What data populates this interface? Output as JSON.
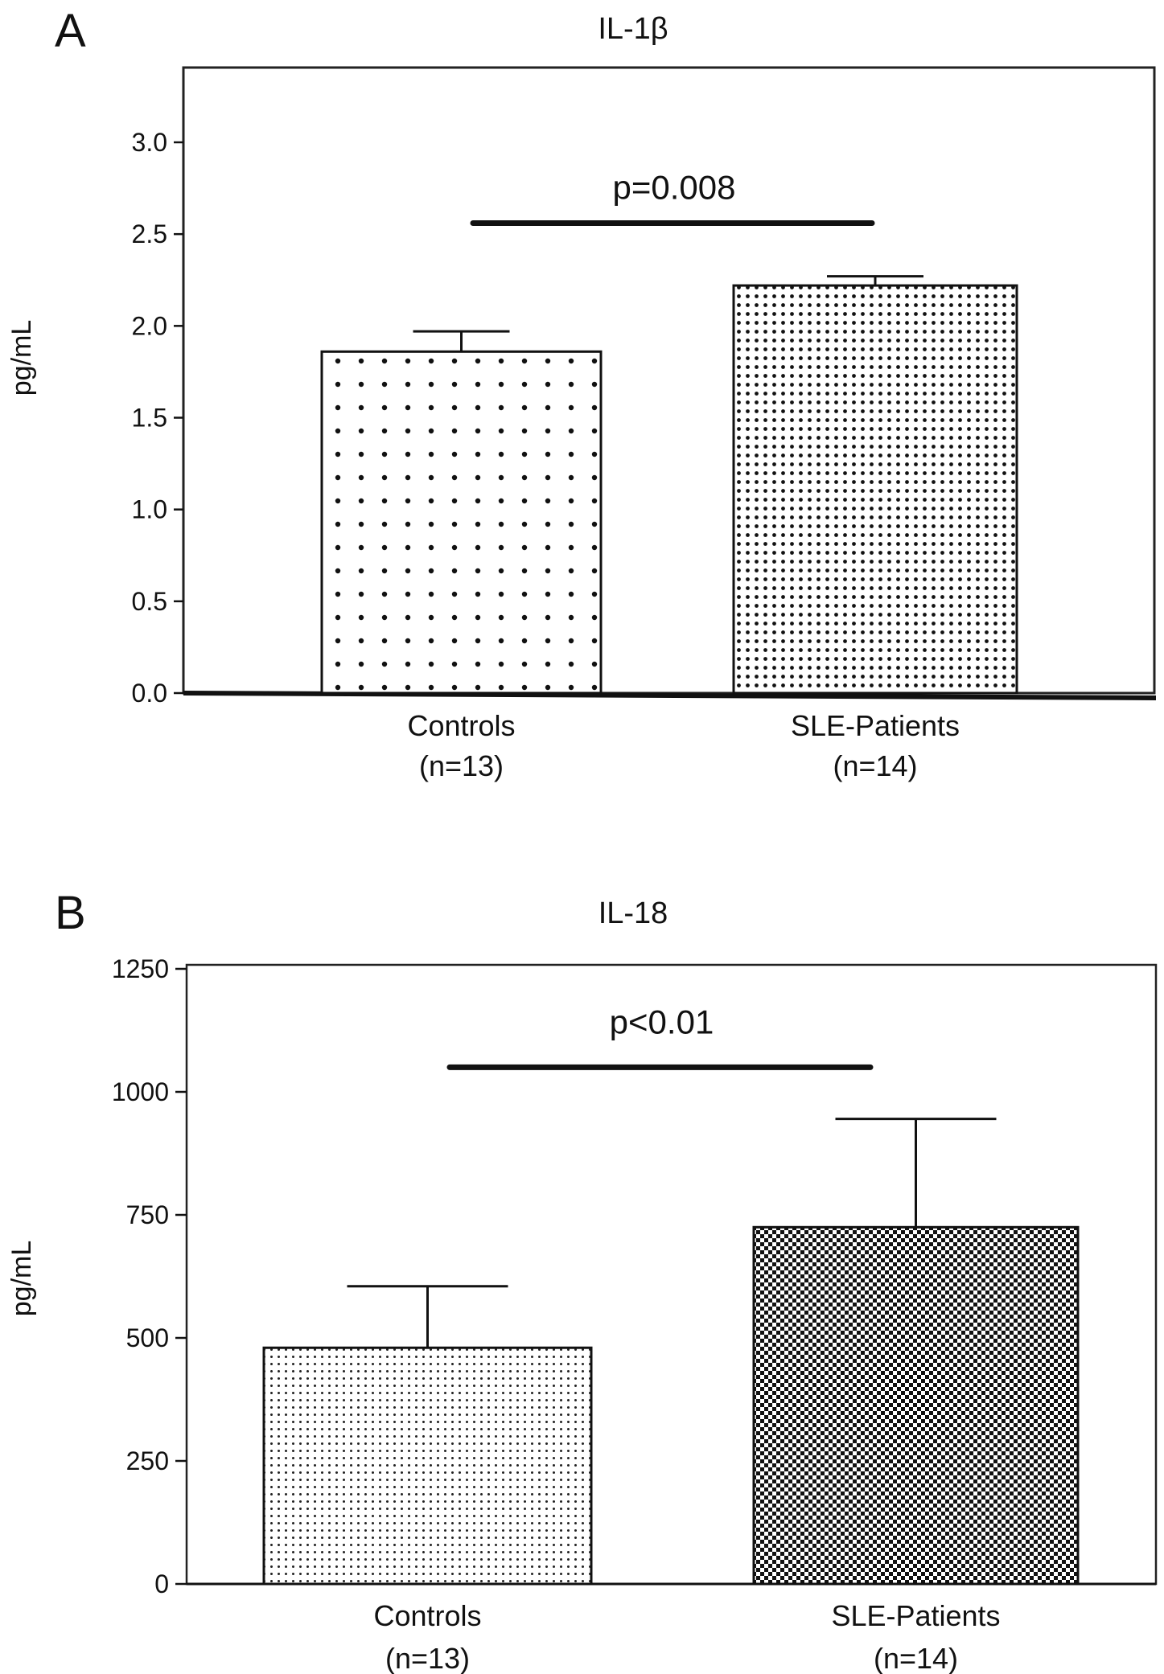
{
  "chart_data": [
    {
      "type": "bar",
      "panel": "A",
      "title": "IL-1β",
      "ylabel": "pg/mL",
      "xlabel": "",
      "ylim": [
        0,
        3.0
      ],
      "yticks": [
        "0.0",
        "0.5",
        "1.0",
        "1.5",
        "2.0",
        "2.5",
        "3.0"
      ],
      "yticks_values": [
        0,
        0.5,
        1.0,
        1.5,
        2.0,
        2.5,
        3.0
      ],
      "categories": [
        {
          "label": "Controls",
          "n": "(n=13)"
        },
        {
          "label": "SLE-Patients",
          "n": "(n=14)"
        }
      ],
      "values": [
        1.86,
        2.22
      ],
      "error_upper": [
        1.97,
        2.27
      ],
      "significance": "p=0.008",
      "significance_y": 2.56,
      "grid": false
    },
    {
      "type": "bar",
      "panel": "B",
      "title": "IL-18",
      "ylabel": "pg/mL",
      "xlabel": "",
      "ylim": [
        0,
        1250
      ],
      "yticks": [
        "0",
        "250",
        "500",
        "750",
        "1000",
        "1250"
      ],
      "yticks_values": [
        0,
        250,
        500,
        750,
        1000,
        1250
      ],
      "categories": [
        {
          "label": "Controls",
          "n": "(n=13)"
        },
        {
          "label": "SLE-Patients",
          "n": "(n=14)"
        }
      ],
      "values": [
        480,
        725
      ],
      "error_upper": [
        605,
        945
      ],
      "significance": "p<0.01",
      "significance_y": 1050,
      "grid": false
    }
  ]
}
